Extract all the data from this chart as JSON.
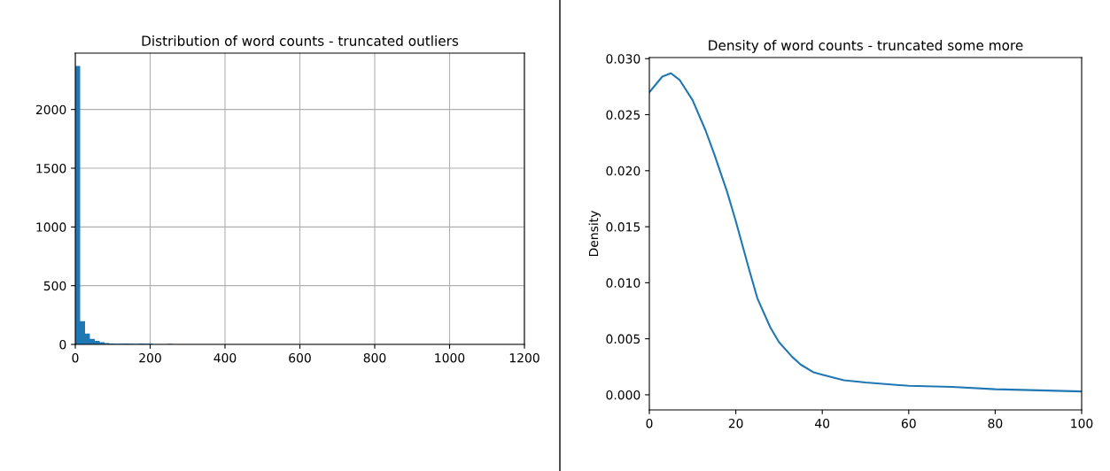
{
  "chart_data": [
    {
      "type": "histogram",
      "title": "Distribution of word counts - truncated outliers",
      "bins": [
        0,
        13,
        26,
        39,
        52,
        65,
        78,
        91,
        104,
        117,
        130,
        143,
        156,
        169,
        182,
        195,
        208,
        221,
        234,
        247,
        260
      ],
      "values": [
        2370,
        198,
        93,
        48,
        30,
        18,
        12,
        8,
        6,
        5,
        8,
        5,
        3,
        7,
        5,
        6,
        0,
        0,
        0,
        3
      ],
      "color": "#1f77b4",
      "xlim": [
        0,
        1200
      ],
      "xticks": [
        0,
        200,
        400,
        600,
        800,
        1000,
        1200
      ],
      "ylim": [
        0,
        2480
      ],
      "yticks": [
        0,
        500,
        1000,
        1500,
        2000
      ],
      "grid": true
    },
    {
      "type": "line",
      "title": "Density of word counts - truncated some more",
      "ylabel": "Density",
      "color": "#1f77b4",
      "x": [
        0,
        3,
        5,
        7,
        10,
        13,
        15,
        18,
        20,
        23,
        25,
        28,
        30,
        33,
        35,
        38,
        40,
        45,
        50,
        60,
        70,
        80,
        90,
        100
      ],
      "values": [
        0.027,
        0.0284,
        0.0287,
        0.0281,
        0.0263,
        0.0236,
        0.0215,
        0.0181,
        0.0155,
        0.0113,
        0.0086,
        0.006,
        0.0047,
        0.0034,
        0.0027,
        0.002,
        0.0018,
        0.0013,
        0.0011,
        0.0008,
        0.0007,
        0.0005,
        0.0004,
        0.0003
      ],
      "xlim": [
        0,
        100
      ],
      "xticks": [
        0,
        20,
        40,
        60,
        80,
        100
      ],
      "ylim": [
        -0.00135,
        0.0301
      ],
      "yticks": [
        {
          "value": 0,
          "label": "0.000"
        },
        {
          "value": 0.005,
          "label": "0.005"
        },
        {
          "value": 0.01,
          "label": "0.010"
        },
        {
          "value": 0.015,
          "label": "0.015"
        },
        {
          "value": 0.02,
          "label": "0.020"
        },
        {
          "value": 0.025,
          "label": "0.025"
        },
        {
          "value": 0.03,
          "label": "0.030"
        }
      ],
      "grid": false
    }
  ]
}
